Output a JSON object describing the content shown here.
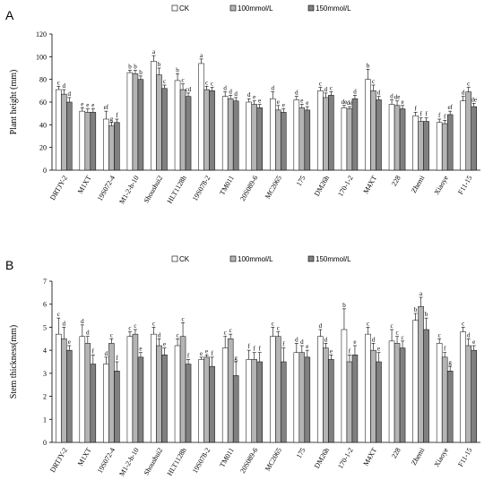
{
  "categories": [
    "DRTJY-2",
    "M1XT",
    "19S072-4",
    "M1-2-h-10",
    "Shoushui2",
    "HLT1128h",
    "19S078-2",
    "TM011",
    "20S089-6",
    "MC2065",
    "175",
    "DM26h",
    "170-1-2",
    "M4XT",
    "228",
    "Zhemi",
    "Xiaoye",
    "F11-15"
  ],
  "legend_entries": [
    "CK",
    "100mmol/L",
    "150mmol/L"
  ],
  "colors": {
    "CK": "#ffffff",
    "100mmol/L": "#b4b4b4",
    "150mmol/L": "#808080"
  },
  "chart_data": [
    {
      "panel": "A",
      "type": "bar",
      "ylabel": "Plant height (mm)",
      "ylim": [
        0,
        120
      ],
      "yticks": [
        0,
        20,
        40,
        60,
        80,
        100,
        120
      ],
      "series": [
        {
          "name": "CK",
          "values": [
            71,
            52,
            45,
            86,
            96,
            79,
            94,
            65,
            60,
            63,
            62,
            70,
            55,
            80,
            58,
            48,
            42,
            61
          ],
          "errors": [
            3,
            3,
            7,
            2,
            5,
            6,
            4,
            4,
            3,
            6,
            3,
            3,
            2,
            9,
            4,
            3,
            3,
            4
          ],
          "labels": [
            "c",
            "e",
            "ef",
            "b",
            "a",
            "b",
            "a",
            "d",
            "d",
            "d",
            "d",
            "c",
            "de",
            "b",
            "d",
            "f",
            "f",
            "d"
          ]
        },
        {
          "name": "100mmol/L",
          "values": [
            67,
            51,
            39,
            85,
            84,
            71,
            71,
            63,
            58,
            53,
            55,
            64,
            54,
            70,
            57,
            43,
            41,
            69
          ],
          "errors": [
            4,
            3,
            3,
            3,
            6,
            5,
            3,
            3,
            3,
            4,
            3,
            4,
            2,
            5,
            4,
            3,
            3,
            4
          ],
          "labels": [
            "d",
            "e",
            "g",
            "b",
            "b",
            "c",
            "c",
            "d",
            "e",
            "e",
            "e",
            "d",
            "de",
            "c",
            "de",
            "f",
            "f",
            "c"
          ]
        },
        {
          "name": "150mmol/L",
          "values": [
            60,
            51,
            42,
            80,
            72,
            65,
            70,
            61,
            55,
            51,
            53,
            66,
            63,
            62,
            54,
            43,
            49,
            56
          ],
          "errors": [
            4,
            3,
            3,
            3,
            3,
            3,
            3,
            3,
            3,
            3,
            3,
            3,
            3,
            3,
            3,
            3,
            3,
            3
          ],
          "labels": [
            "d",
            "e",
            "f",
            "b",
            "c",
            "cd",
            "c",
            "d",
            "e",
            "e",
            "e",
            "c",
            "d",
            "d",
            "e",
            "f",
            "ef",
            "de"
          ]
        }
      ]
    },
    {
      "panel": "B",
      "type": "bar",
      "ylabel": "Stem thickness(mm)",
      "ylim": [
        0,
        7
      ],
      "yticks": [
        0,
        1,
        2,
        3,
        4,
        5,
        6,
        7
      ],
      "series": [
        {
          "name": "CK",
          "values": [
            4.7,
            4.6,
            3.4,
            4.6,
            4.7,
            4.2,
            3.6,
            4.1,
            3.6,
            4.6,
            3.9,
            4.6,
            4.9,
            4.7,
            4.4,
            5.3,
            4.3,
            4.8
          ],
          "errors": [
            0.7,
            0.5,
            0.3,
            0.2,
            0.3,
            0.3,
            0.1,
            0.5,
            0.4,
            0.4,
            0.4,
            0.3,
            0.9,
            0.3,
            0.5,
            0.3,
            0.2,
            0.2
          ],
          "labels": [
            "c",
            "d",
            "d",
            "c",
            "c",
            "c",
            "e",
            "c",
            "f",
            "c",
            "d",
            "d",
            "b",
            "c",
            "c",
            "b",
            "c",
            "c"
          ]
        },
        {
          "name": "100mmol/L",
          "values": [
            4.5,
            4.3,
            4.3,
            4.7,
            4.2,
            4.6,
            3.7,
            4.5,
            3.6,
            4.6,
            3.9,
            4.1,
            3.5,
            4.0,
            4.3,
            5.9,
            3.7,
            4.2
          ],
          "errors": [
            0.5,
            0.3,
            0.2,
            0.2,
            0.3,
            0.6,
            0.1,
            0.2,
            0.3,
            0.2,
            0.3,
            0.2,
            0.3,
            0.3,
            0.3,
            0.4,
            0.2,
            0.3
          ],
          "labels": [
            "d",
            "d",
            "c",
            "c",
            "d",
            "c",
            "e",
            "c",
            "f",
            "c",
            "d",
            "d",
            "f",
            "d",
            "c",
            "a",
            "f",
            "d"
          ]
        },
        {
          "name": "150mmol/L",
          "values": [
            4.0,
            3.4,
            3.1,
            3.7,
            3.8,
            3.4,
            3.3,
            2.9,
            3.5,
            3.5,
            3.7,
            3.6,
            3.8,
            3.5,
            4.1,
            4.9,
            3.1,
            4.0
          ],
          "errors": [
            0.2,
            0.4,
            0.4,
            0.2,
            0.3,
            0.2,
            0.4,
            0.6,
            0.4,
            0.6,
            0.3,
            0.2,
            0.4,
            0.4,
            0.3,
            0.5,
            0.2,
            0.2
          ],
          "labels": [
            "e",
            "f",
            "f",
            "e",
            "e",
            "f",
            "f",
            "g",
            "f",
            "f",
            "e",
            "e",
            "e",
            "e",
            "c",
            "b",
            "g",
            "e"
          ]
        }
      ]
    }
  ]
}
